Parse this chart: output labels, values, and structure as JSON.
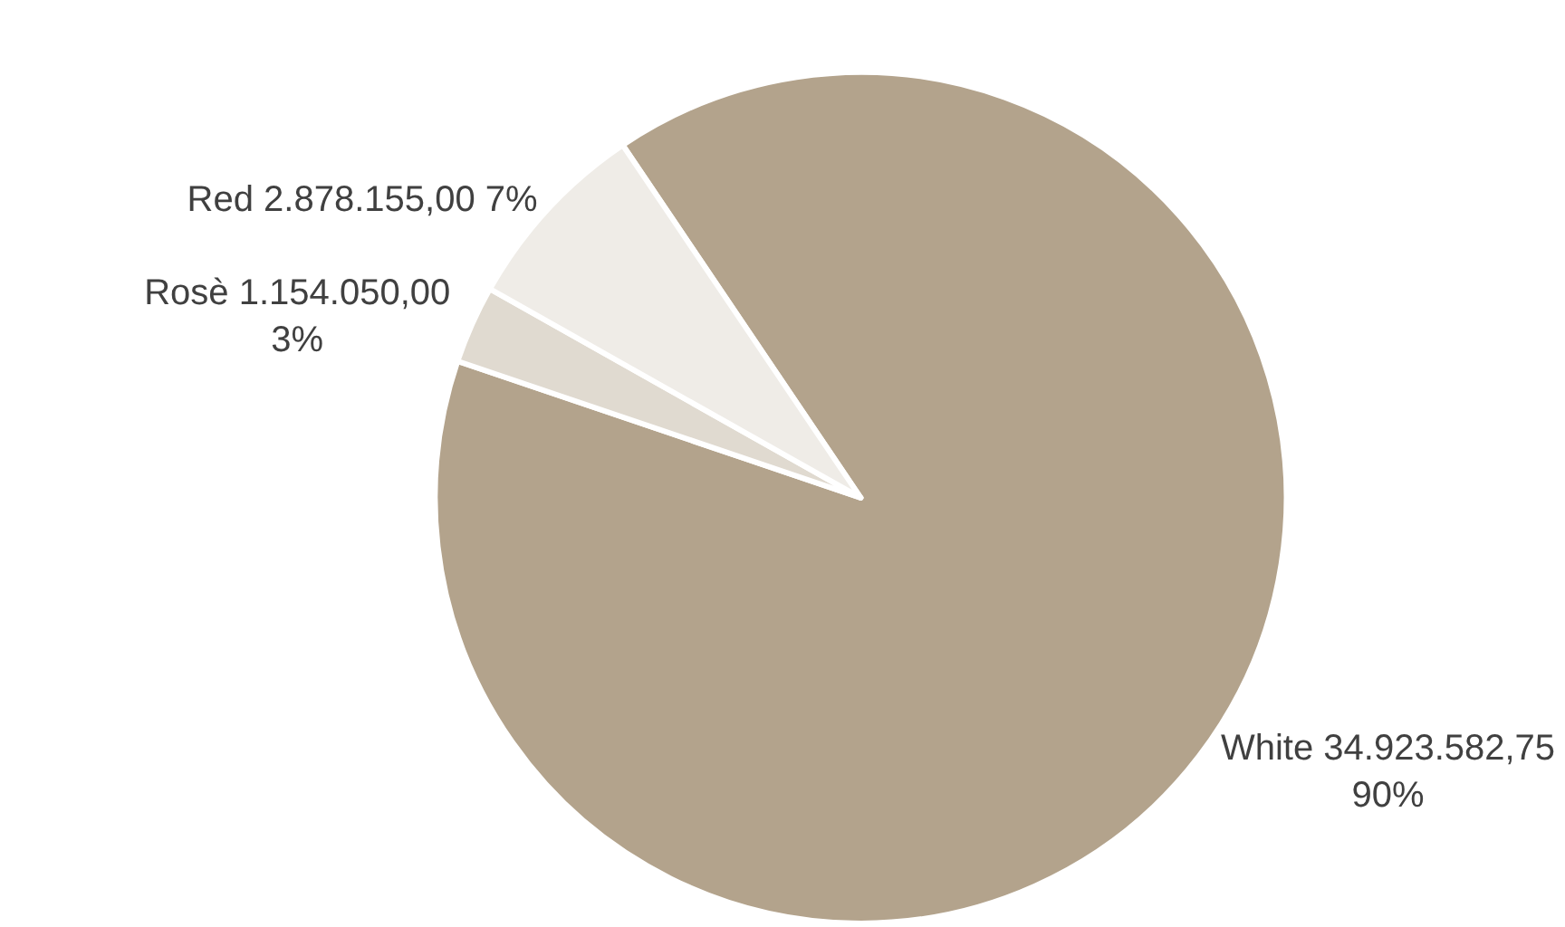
{
  "chart_data": {
    "type": "pie",
    "categories": [
      "White",
      "Rosè",
      "Red"
    ],
    "values": [
      34923582.75,
      1154050.0,
      2878155.0
    ],
    "value_labels": [
      "34.923.582,75 90%",
      "1.154.050,00 3%",
      "2.878.155,00 7%"
    ],
    "colors": [
      "#b3a38c",
      "#e0dad0",
      "#efece7"
    ],
    "legend": false
  }
}
